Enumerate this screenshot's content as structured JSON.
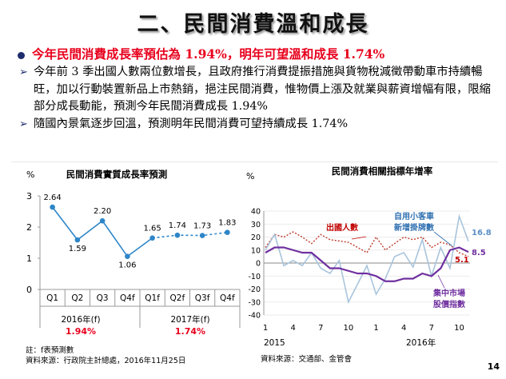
{
  "slide": {
    "title": "二、民間消費溫和成長",
    "headline": "今年民間消費成長率預估為 1.94%，明年可望溫和成長 1.74%",
    "bullets": [
      "今年前 3 季出國人數兩位數增長，且政府推行消費提振措施與貨物稅減徵帶動車市持續暢旺，加以行動裝置新品上市熱銷，挹注民間消費，惟物價上漲及就業與薪資增幅有限，限縮部分成長動能，預測今年民間消費成長 1.94%",
      "隨國內景氣逐步回溫，預測明年民間消費可望持續成長 1.74%"
    ],
    "page_number": "14"
  },
  "left_chart_text": {
    "unit": "%",
    "title": "民間消費實質成長率預測",
    "year_2016": "2016年(f)",
    "year_2017": "2017年(f)",
    "rate_2016": "1.94%",
    "rate_2017": "1.74%",
    "note": "註：f表預測數",
    "source": "資料來源：行政院主計總處，2016年11月25日"
  },
  "right_chart_text": {
    "unit": "%",
    "title": "民間消費相關指標年增率",
    "label_outbound": "出國人數",
    "label_cars_1": "自用小客車",
    "label_cars_2": "新增掛牌數",
    "label_retail_1": "集中市場",
    "label_retail_2": "股價指數",
    "end_value_cars": "16.8",
    "end_value_outbound": "5.1",
    "end_value_stock": "8.5",
    "year_2015": "2015",
    "year_2016": "2016年",
    "source": "資料來源：交通部、金管會"
  },
  "chart_data": [
    {
      "type": "line",
      "title": "民間消費實質成長率預測",
      "ylabel": "%",
      "ylim": [
        0,
        3
      ],
      "yticks": [
        0,
        1,
        2,
        3
      ],
      "categories": [
        "Q1",
        "Q2",
        "Q3",
        "Q4f",
        "Q1f",
        "Q2f",
        "Q3f",
        "Q4f"
      ],
      "values": [
        2.64,
        1.59,
        2.2,
        1.06,
        1.65,
        1.74,
        1.73,
        1.83
      ],
      "value_labels": [
        "2.64",
        "1.59",
        "2.20",
        "1.06",
        "1.65",
        "1.74",
        "1.73",
        "1.83"
      ],
      "forecast_from_index": 5,
      "color": "#2e86c8"
    },
    {
      "type": "line",
      "title": "民間消費相關指標年增率",
      "ylabel": "%",
      "ylim": [
        -40,
        40
      ],
      "yticks": [
        -40,
        -30,
        -20,
        -10,
        0,
        10,
        20,
        30,
        40
      ],
      "x_tick_labels": [
        "1",
        "4",
        "7",
        "10",
        "1",
        "4",
        "7",
        "10"
      ],
      "x_tick_index": [
        0,
        3,
        6,
        9,
        12,
        15,
        18,
        21
      ],
      "series": [
        {
          "name": "出國人數",
          "color": "#c0392b",
          "style": "dotted",
          "values": [
            12,
            22,
            20,
            24,
            20,
            15,
            22,
            18,
            17,
            16,
            12,
            8,
            20,
            10,
            15,
            20,
            18,
            20,
            12,
            16,
            14,
            8,
            5.1
          ]
        },
        {
          "name": "自用小客車新增掛牌數",
          "color": "#a9c4dc",
          "style": "solid",
          "values": [
            10,
            22,
            -2,
            2,
            -2,
            8,
            -4,
            -8,
            2,
            -30,
            -16,
            -2,
            -24,
            -12,
            5,
            8,
            -3,
            18,
            -10,
            12,
            -4,
            36,
            16.8
          ]
        },
        {
          "name": "集中市場股價指數",
          "color": "#7030a0",
          "style": "solid",
          "values": [
            8,
            12,
            12,
            10,
            8,
            8,
            2,
            -4,
            -4,
            -6,
            -8,
            -8,
            -10,
            -14,
            -14,
            -12,
            -12,
            -8,
            -10,
            -4,
            10,
            12,
            8.5
          ]
        }
      ]
    }
  ]
}
